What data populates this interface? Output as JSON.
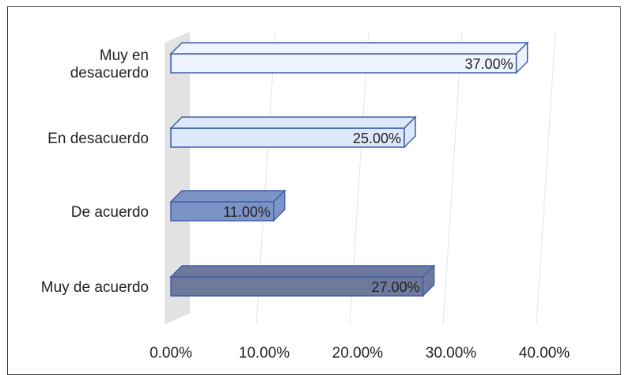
{
  "chart_data": {
    "type": "bar",
    "orientation": "horizontal",
    "style": "3d",
    "categories": [
      "Muy en desacuerdo",
      "En desacuerdo",
      "De acuerdo",
      "Muy de acuerdo"
    ],
    "category_lines": [
      [
        "Muy en",
        "desacuerdo"
      ],
      [
        "En desacuerdo"
      ],
      [
        "De acuerdo"
      ],
      [
        "Muy de acuerdo"
      ]
    ],
    "values": [
      37,
      25,
      11,
      27
    ],
    "value_labels": [
      "37.00%",
      "25.00%",
      "11.00%",
      "27.00%"
    ],
    "colors": [
      "#eef4ff",
      "#dde8fb",
      "#7d93c6",
      "#6d7a9c"
    ],
    "xlim": [
      0,
      40
    ],
    "ticks": [
      0,
      10,
      20,
      30,
      40
    ],
    "tick_labels": [
      "0.00%",
      "10.00%",
      "20.00%",
      "30.00%",
      "40.00%"
    ],
    "grid": true,
    "title": "",
    "xlabel": "",
    "ylabel": ""
  }
}
